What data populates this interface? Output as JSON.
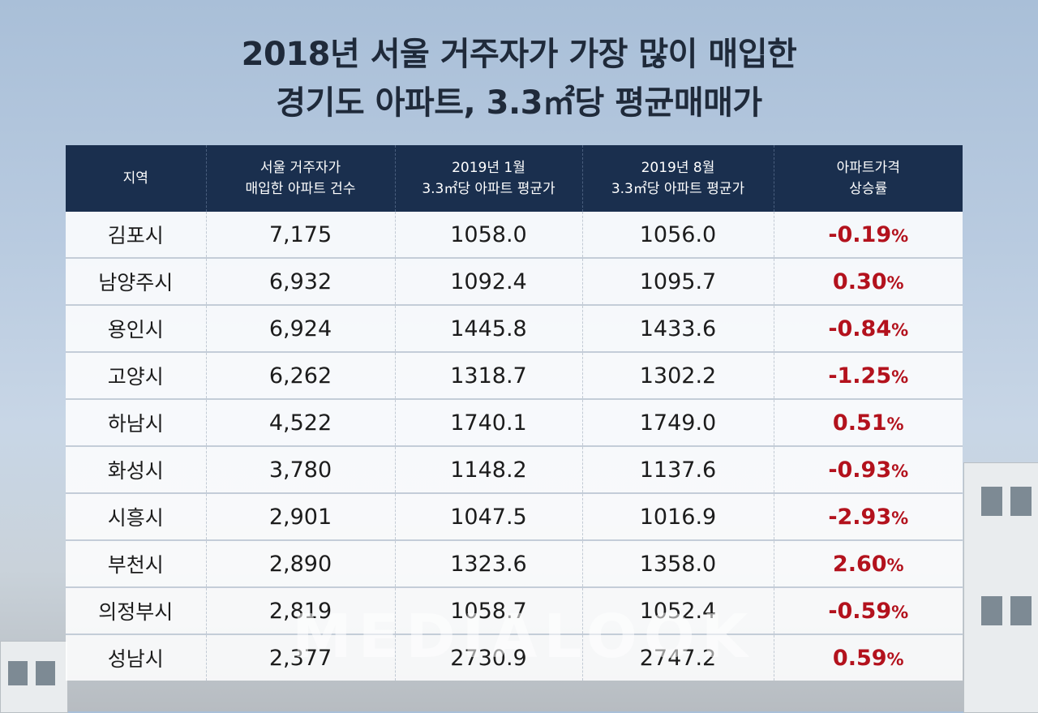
{
  "title": {
    "line1": "2018년 서울 거주자가 가장 많이 매입한",
    "line2": "경기도 아파트, 3.3㎡당 평균매매가"
  },
  "table": {
    "headers": [
      {
        "line1": "지역",
        "line2": ""
      },
      {
        "line1": "서울 거주자가",
        "line2": "매입한 아파트 건수"
      },
      {
        "line1": "2019년 1월",
        "line2": "3.3㎡당 아파트 평균가"
      },
      {
        "line1": "2019년 8월",
        "line2": "3.3㎡당 아파트 평균가"
      },
      {
        "line1": "아파트가격",
        "line2": "상승률"
      }
    ],
    "rows": [
      {
        "region": "김포시",
        "count": "7,175",
        "jan": "1058.0",
        "aug": "1056.0",
        "rate": "-0.19",
        "unit": "%"
      },
      {
        "region": "남양주시",
        "count": "6,932",
        "jan": "1092.4",
        "aug": "1095.7",
        "rate": "0.30",
        "unit": "%"
      },
      {
        "region": "용인시",
        "count": "6,924",
        "jan": "1445.8",
        "aug": "1433.6",
        "rate": "-0.84",
        "unit": "%"
      },
      {
        "region": "고양시",
        "count": "6,262",
        "jan": "1318.7",
        "aug": "1302.2",
        "rate": "-1.25",
        "unit": "%"
      },
      {
        "region": "하남시",
        "count": "4,522",
        "jan": "1740.1",
        "aug": "1749.0",
        "rate": "0.51",
        "unit": "%"
      },
      {
        "region": "화성시",
        "count": "3,780",
        "jan": "1148.2",
        "aug": "1137.6",
        "rate": "-0.93",
        "unit": "%"
      },
      {
        "region": "시흥시",
        "count": "2,901",
        "jan": "1047.5",
        "aug": "1016.9",
        "rate": "-2.93",
        "unit": "%"
      },
      {
        "region": "부천시",
        "count": "2,890",
        "jan": "1323.6",
        "aug": "1358.0",
        "rate": "2.60",
        "unit": "%"
      },
      {
        "region": "의정부시",
        "count": "2,819",
        "jan": "1058.7",
        "aug": "1052.4",
        "rate": "-0.59",
        "unit": "%"
      },
      {
        "region": "성남시",
        "count": "2,377",
        "jan": "2730.9",
        "aug": "2747.2",
        "rate": "0.59",
        "unit": "%"
      }
    ]
  },
  "watermark": "MEDIALOOK",
  "colors": {
    "header_bg": "#1a2f4e",
    "rate_text": "#b3121d",
    "title_text": "#1f2a3a"
  }
}
